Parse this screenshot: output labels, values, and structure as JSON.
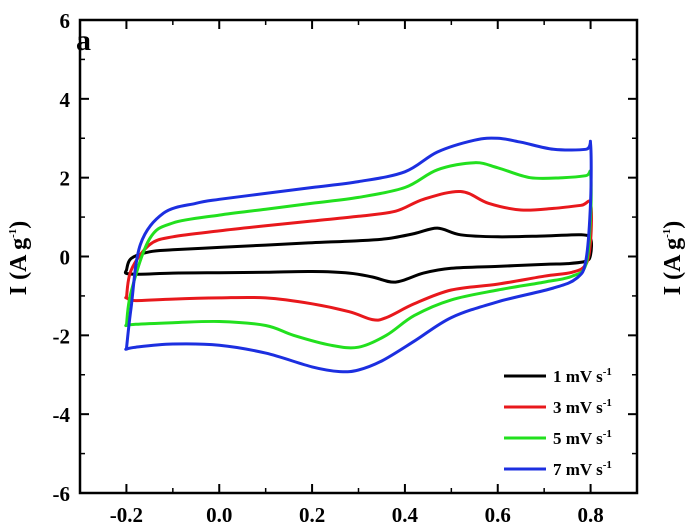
{
  "chart_data": {
    "type": "line",
    "panel_label": "a",
    "xlabel": "",
    "ylabel": "I (A g",
    "ylabel_sup": "-1",
    "ylabel_close": ")",
    "right_label": "I (A g",
    "right_label_sup": "-1",
    "right_label_close": ")",
    "xlim": [
      -0.3,
      0.9
    ],
    "ylim": [
      -6,
      6
    ],
    "xticks": [
      "-0.2",
      "0.0",
      "0.2",
      "0.4",
      "0.6",
      "0.8"
    ],
    "yticks": [
      "-6",
      "-4",
      "-2",
      "0",
      "2",
      "4",
      "6"
    ],
    "legend_position": "bottom-right",
    "series": [
      {
        "name": "1 mV s",
        "name_sup": "-1",
        "color": "#000000",
        "x": [
          -0.2,
          -0.19,
          -0.15,
          -0.1,
          0.0,
          0.1,
          0.2,
          0.3,
          0.36,
          0.42,
          0.47,
          0.52,
          0.6,
          0.7,
          0.78,
          0.8,
          0.8,
          0.79,
          0.75,
          0.7,
          0.6,
          0.5,
          0.44,
          0.38,
          0.33,
          0.28,
          0.2,
          0.1,
          0.0,
          -0.1,
          -0.17,
          -0.2,
          -0.2
        ],
        "y": [
          -0.35,
          -0.05,
          0.12,
          0.17,
          0.23,
          0.29,
          0.35,
          0.4,
          0.45,
          0.58,
          0.72,
          0.55,
          0.5,
          0.52,
          0.55,
          0.45,
          0.05,
          -0.12,
          -0.18,
          -0.2,
          -0.25,
          -0.3,
          -0.42,
          -0.65,
          -0.52,
          -0.42,
          -0.38,
          -0.4,
          -0.41,
          -0.42,
          -0.45,
          -0.43,
          -0.35
        ]
      },
      {
        "name": "3 mV s",
        "name_sup": "-1",
        "color": "#e8181c",
        "x": [
          -0.2,
          -0.19,
          -0.15,
          -0.1,
          0.0,
          0.1,
          0.2,
          0.3,
          0.38,
          0.44,
          0.52,
          0.58,
          0.65,
          0.72,
          0.78,
          0.8,
          0.8,
          0.79,
          0.76,
          0.7,
          0.6,
          0.5,
          0.42,
          0.36,
          0.33,
          0.28,
          0.2,
          0.1,
          0.0,
          -0.1,
          -0.18,
          -0.2,
          -0.2
        ],
        "y": [
          -1.05,
          -0.35,
          0.3,
          0.5,
          0.65,
          0.78,
          0.9,
          1.02,
          1.15,
          1.45,
          1.65,
          1.35,
          1.18,
          1.22,
          1.3,
          1.35,
          0.4,
          -0.2,
          -0.4,
          -0.5,
          -0.7,
          -0.85,
          -1.2,
          -1.55,
          -1.6,
          -1.4,
          -1.2,
          -1.05,
          -1.05,
          -1.08,
          -1.12,
          -1.05,
          -1.05
        ]
      },
      {
        "name": "5 mV s",
        "name_sup": "-1",
        "color": "#22e01e",
        "x": [
          -0.2,
          -0.19,
          -0.15,
          -0.1,
          0.0,
          0.1,
          0.2,
          0.3,
          0.4,
          0.47,
          0.55,
          0.6,
          0.67,
          0.74,
          0.79,
          0.8,
          0.8,
          0.79,
          0.76,
          0.7,
          0.6,
          0.5,
          0.42,
          0.36,
          0.3,
          0.24,
          0.16,
          0.1,
          0.0,
          -0.1,
          -0.18,
          -0.2,
          -0.2
        ],
        "y": [
          -1.75,
          -0.9,
          0.45,
          0.85,
          1.05,
          1.2,
          1.35,
          1.5,
          1.75,
          2.2,
          2.38,
          2.25,
          2.0,
          2.0,
          2.05,
          2.1,
          1.0,
          -0.2,
          -0.5,
          -0.65,
          -0.85,
          -1.1,
          -1.5,
          -2.0,
          -2.3,
          -2.25,
          -2.0,
          -1.75,
          -1.65,
          -1.68,
          -1.72,
          -1.75,
          -1.75
        ]
      },
      {
        "name": "7 mV s",
        "name_sup": "-1",
        "color": "#1c2fe0",
        "x": [
          -0.2,
          -0.19,
          -0.17,
          -0.12,
          -0.05,
          0.0,
          0.1,
          0.2,
          0.3,
          0.4,
          0.47,
          0.55,
          0.6,
          0.65,
          0.72,
          0.79,
          0.8,
          0.8,
          0.79,
          0.77,
          0.72,
          0.6,
          0.5,
          0.42,
          0.35,
          0.3,
          0.26,
          0.2,
          0.1,
          0.0,
          -0.1,
          -0.18,
          -0.2,
          -0.2
        ],
        "y": [
          -2.35,
          -1.3,
          0.3,
          1.1,
          1.35,
          1.45,
          1.6,
          1.75,
          1.9,
          2.15,
          2.65,
          2.95,
          3.0,
          2.9,
          2.72,
          2.72,
          2.85,
          1.4,
          -0.1,
          -0.55,
          -0.8,
          -1.15,
          -1.55,
          -2.15,
          -2.65,
          -2.88,
          -2.92,
          -2.8,
          -2.45,
          -2.25,
          -2.22,
          -2.3,
          -2.35,
          -2.35
        ]
      }
    ]
  }
}
